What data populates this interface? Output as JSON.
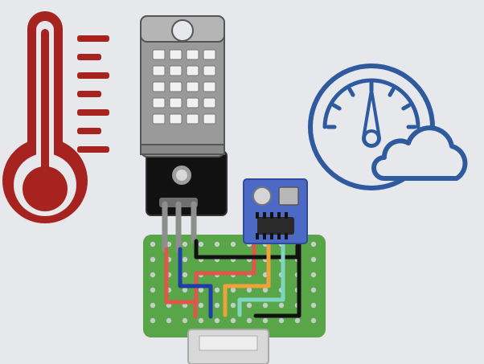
{
  "scene": {
    "background": "#E7E8EC",
    "icons": [
      {
        "name": "thermometer-icon",
        "color": "#A6231F"
      },
      {
        "name": "temperature-humidity-sensor-icon",
        "color": "#9A9A9A"
      },
      {
        "name": "pressure-gauge-cloud-icon",
        "color": "#2F5A9E"
      },
      {
        "name": "barometric-sensor-module-icon",
        "color": "#4D69C6"
      },
      {
        "name": "perfboard-icon",
        "color": "#58A648"
      }
    ],
    "wire_colors": {
      "red": "#E0564A",
      "blue": "#1E3FA8",
      "black": "#111111",
      "orange": "#F0A23A",
      "mint": "#7ED6C2"
    }
  }
}
